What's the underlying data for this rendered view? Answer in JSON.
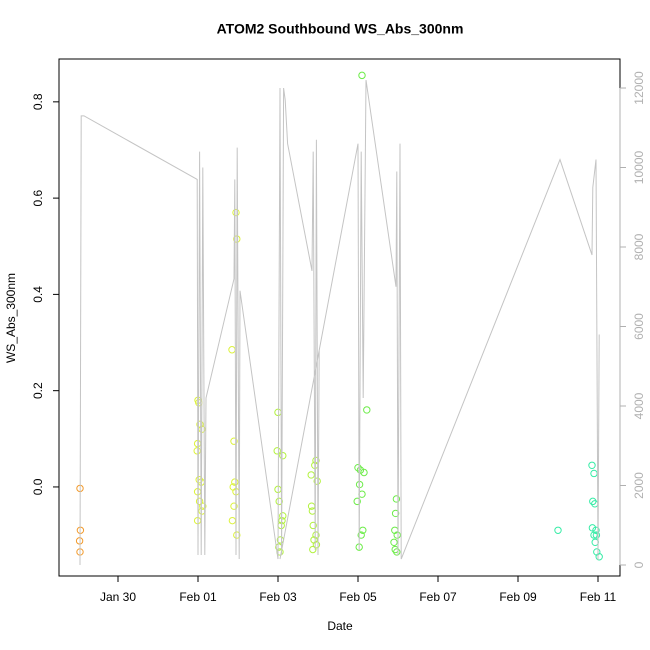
{
  "chart_data": {
    "type": "scatter",
    "title": "ATOM2 Southbound WS_Abs_300nm",
    "xlabel": "Date",
    "ylabel": "WS_Abs_300nm",
    "xlim": [
      28.525,
      42.55
    ],
    "xticks": [
      {
        "value": 30,
        "label": "Jan 30"
      },
      {
        "value": 32,
        "label": "Feb 01"
      },
      {
        "value": 34,
        "label": "Feb 03"
      },
      {
        "value": 36,
        "label": "Feb 05"
      },
      {
        "value": 38,
        "label": "Feb 07"
      },
      {
        "value": 40,
        "label": "Feb 09"
      },
      {
        "value": 42,
        "label": "Feb 11"
      }
    ],
    "ylim": [
      -0.185,
      0.889
    ],
    "yticks": [
      {
        "value": 0,
        "label": "0.0"
      },
      {
        "value": 0.2,
        "label": "0.2"
      },
      {
        "value": 0.4,
        "label": "0.4"
      },
      {
        "value": 0.6,
        "label": "0.6"
      },
      {
        "value": 0.8,
        "label": "0.8"
      }
    ],
    "y2lim": [
      -277,
      12730
    ],
    "y2ticks": [
      0,
      2000,
      4000,
      6000,
      8000,
      10000,
      12000
    ],
    "series": [
      {
        "color": "#f39a2a",
        "x": [
          29.05,
          29.06,
          29.04,
          29.05
        ],
        "values": [
          -0.003,
          -0.09,
          -0.112,
          -0.135
        ]
      },
      {
        "color": "#dcf23a",
        "x": [
          32.0,
          32.02,
          32.05,
          32.1,
          31.99,
          31.98,
          32.03,
          32.08,
          31.99,
          32.04,
          32.12,
          32.1,
          31.99,
          32.95,
          32.97,
          32.85,
          32.9,
          32.92,
          32.88,
          32.95,
          32.9,
          32.86,
          32.97
        ],
        "values": [
          0.18,
          0.175,
          0.13,
          0.12,
          0.09,
          0.075,
          0.015,
          0.01,
          -0.01,
          -0.03,
          -0.04,
          -0.05,
          -0.07,
          0.57,
          0.515,
          0.285,
          0.095,
          0.01,
          0.0,
          -0.01,
          -0.04,
          -0.07,
          -0.1
        ]
      },
      {
        "color": "#b2f23e",
        "x": [
          34.0,
          33.98,
          34.12,
          34.0,
          34.03,
          34.12,
          34.1,
          34.08,
          34.06,
          34.02,
          34.05,
          34.95,
          34.92,
          34.83,
          34.98,
          34.84,
          34.86,
          34.88,
          34.95,
          34.9,
          34.96,
          34.87
        ],
        "values": [
          0.155,
          0.075,
          0.065,
          -0.005,
          -0.03,
          -0.06,
          -0.07,
          -0.08,
          -0.11,
          -0.125,
          -0.135,
          0.055,
          0.045,
          0.025,
          0.012,
          -0.04,
          -0.05,
          -0.08,
          -0.1,
          -0.11,
          -0.12,
          -0.13
        ]
      },
      {
        "color": "#6cec48",
        "x": [
          36.1,
          36.22,
          36.0,
          36.06,
          36.15,
          36.04,
          36.1,
          35.98,
          36.12,
          36.08,
          36.03,
          36.96,
          36.94,
          36.92,
          36.98,
          36.9,
          36.93,
          36.97
        ],
        "values": [
          0.855,
          0.16,
          0.04,
          0.035,
          0.03,
          0.005,
          -0.015,
          -0.03,
          -0.09,
          -0.1,
          -0.125,
          -0.025,
          -0.055,
          -0.09,
          -0.1,
          -0.115,
          -0.13,
          -0.135
        ]
      },
      {
        "color": "#36eca6",
        "x": [
          41.0,
          41.85,
          41.9,
          41.87,
          41.92,
          41.86,
          41.95,
          41.9,
          41.96,
          41.93,
          41.97,
          42.03
        ],
        "values": [
          -0.09,
          0.045,
          0.028,
          -0.03,
          -0.035,
          -0.085,
          -0.09,
          -0.1,
          -0.1,
          -0.115,
          -0.135,
          -0.145
        ]
      },
      {
        "axis": "y2",
        "color": "#c4c4c4",
        "x": [
          29.05,
          29.08,
          29.15,
          31.98,
          32.0,
          32.04,
          32.08,
          32.12,
          32.17,
          32.2,
          32.9,
          32.92,
          32.95,
          32.98,
          33.03,
          33.05,
          34.0,
          34.05,
          34.09,
          34.14,
          34.18,
          34.24,
          34.85,
          34.88,
          34.93,
          34.96,
          35.0,
          35.03,
          34.05,
          36.0,
          36.03,
          36.08,
          36.13,
          36.2,
          36.95,
          36.97,
          37.0,
          37.05,
          37.08,
          41.05,
          41.85,
          41.87,
          41.95,
          42.0,
          42.03
        ],
        "values": [
          0,
          11300,
          11300,
          9700,
          250,
          10400,
          250,
          10000,
          250,
          4200,
          7200,
          9700,
          250,
          10500,
          150,
          6900,
          150,
          12000,
          250,
          12000,
          11700,
          10600,
          7400,
          10400,
          380,
          10700,
          250,
          5400,
          150,
          10600,
          380,
          10400,
          4200,
          12200,
          7000,
          9900,
          250,
          10600,
          150,
          10200,
          7800,
          9500,
          10200,
          130,
          5800
        ]
      }
    ]
  }
}
